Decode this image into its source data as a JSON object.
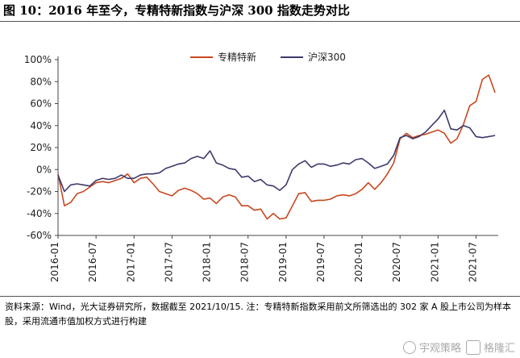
{
  "header": {
    "title": "图 10：2016 年至今，专精特新指数与沪深 300 指数走势对比"
  },
  "footer": {
    "source_text": "资料来源：Wind，光大证券研究所，数据截至 2021/10/15. 注：专精特新指数采用前文所筛选出的 302 家 A 股上市公司为样本股，采用流通市值加权方式进行构建",
    "watermark": "宇观策略",
    "watermark2": "格隆汇"
  },
  "chart_data": {
    "type": "line",
    "title": "",
    "xlabel": "",
    "ylabel": "",
    "ylim": [
      -0.6,
      1.0
    ],
    "yticks": [
      1.0,
      0.8,
      0.6,
      0.4,
      0.2,
      0.0,
      -0.2,
      -0.4,
      -0.6
    ],
    "ytick_labels": [
      "100%",
      "80%",
      "60%",
      "40%",
      "20%",
      "0%",
      "-20%",
      "-40%",
      "-60%"
    ],
    "xlim": [
      "2016-01",
      "2021-10"
    ],
    "xtick_labels": [
      "2016-01",
      "2016-07",
      "2017-01",
      "2017-07",
      "2018-01",
      "2018-07",
      "2019-01",
      "2019-07",
      "2020-01",
      "2020-07",
      "2021-01",
      "2021-07"
    ],
    "legend_position": "top-center",
    "grid": false,
    "series": [
      {
        "name": "专精特新",
        "color": "#C8471F",
        "points": [
          [
            "2016-01",
            -0.04
          ],
          [
            "2016-02",
            -0.33
          ],
          [
            "2016-03",
            -0.3
          ],
          [
            "2016-04",
            -0.22
          ],
          [
            "2016-05",
            -0.2
          ],
          [
            "2016-06",
            -0.16
          ],
          [
            "2016-07",
            -0.12
          ],
          [
            "2016-08",
            -0.11
          ],
          [
            "2016-09",
            -0.12
          ],
          [
            "2016-10",
            -0.1
          ],
          [
            "2016-11",
            -0.08
          ],
          [
            "2016-12",
            -0.04
          ],
          [
            "2017-01",
            -0.12
          ],
          [
            "2017-02",
            -0.08
          ],
          [
            "2017-03",
            -0.07
          ],
          [
            "2017-04",
            -0.13
          ],
          [
            "2017-05",
            -0.2
          ],
          [
            "2017-06",
            -0.22
          ],
          [
            "2017-07",
            -0.24
          ],
          [
            "2017-08",
            -0.19
          ],
          [
            "2017-09",
            -0.17
          ],
          [
            "2017-10",
            -0.19
          ],
          [
            "2017-11",
            -0.22
          ],
          [
            "2017-12",
            -0.27
          ],
          [
            "2018-01",
            -0.26
          ],
          [
            "2018-02",
            -0.31
          ],
          [
            "2018-03",
            -0.25
          ],
          [
            "2018-04",
            -0.23
          ],
          [
            "2018-05",
            -0.25
          ],
          [
            "2018-06",
            -0.33
          ],
          [
            "2018-07",
            -0.33
          ],
          [
            "2018-08",
            -0.37
          ],
          [
            "2018-09",
            -0.36
          ],
          [
            "2018-10",
            -0.45
          ],
          [
            "2018-11",
            -0.4
          ],
          [
            "2018-12",
            -0.45
          ],
          [
            "2019-01",
            -0.44
          ],
          [
            "2019-02",
            -0.33
          ],
          [
            "2019-03",
            -0.22
          ],
          [
            "2019-04",
            -0.21
          ],
          [
            "2019-05",
            -0.29
          ],
          [
            "2019-06",
            -0.28
          ],
          [
            "2019-07",
            -0.28
          ],
          [
            "2019-08",
            -0.27
          ],
          [
            "2019-09",
            -0.24
          ],
          [
            "2019-10",
            -0.23
          ],
          [
            "2019-11",
            -0.24
          ],
          [
            "2019-12",
            -0.22
          ],
          [
            "2020-01",
            -0.18
          ],
          [
            "2020-02",
            -0.12
          ],
          [
            "2020-03",
            -0.18
          ],
          [
            "2020-04",
            -0.12
          ],
          [
            "2020-05",
            -0.04
          ],
          [
            "2020-06",
            0.06
          ],
          [
            "2020-07",
            0.28
          ],
          [
            "2020-08",
            0.33
          ],
          [
            "2020-09",
            0.29
          ],
          [
            "2020-10",
            0.31
          ],
          [
            "2020-11",
            0.32
          ],
          [
            "2020-12",
            0.34
          ],
          [
            "2021-01",
            0.36
          ],
          [
            "2021-02",
            0.33
          ],
          [
            "2021-03",
            0.24
          ],
          [
            "2021-04",
            0.28
          ],
          [
            "2021-05",
            0.41
          ],
          [
            "2021-06",
            0.58
          ],
          [
            "2021-07",
            0.62
          ],
          [
            "2021-08",
            0.82
          ],
          [
            "2021-09",
            0.86
          ],
          [
            "2021-10",
            0.7
          ]
        ]
      },
      {
        "name": "沪深300",
        "color": "#3D3A6B",
        "points": [
          [
            "2016-01",
            -0.05
          ],
          [
            "2016-02",
            -0.2
          ],
          [
            "2016-03",
            -0.14
          ],
          [
            "2016-04",
            -0.13
          ],
          [
            "2016-05",
            -0.14
          ],
          [
            "2016-06",
            -0.15
          ],
          [
            "2016-07",
            -0.1
          ],
          [
            "2016-08",
            -0.08
          ],
          [
            "2016-09",
            -0.09
          ],
          [
            "2016-10",
            -0.08
          ],
          [
            "2016-11",
            -0.05
          ],
          [
            "2016-12",
            -0.08
          ],
          [
            "2017-01",
            -0.08
          ],
          [
            "2017-02",
            -0.05
          ],
          [
            "2017-03",
            -0.04
          ],
          [
            "2017-04",
            -0.04
          ],
          [
            "2017-05",
            -0.03
          ],
          [
            "2017-06",
            0.01
          ],
          [
            "2017-07",
            0.03
          ],
          [
            "2017-08",
            0.05
          ],
          [
            "2017-09",
            0.06
          ],
          [
            "2017-10",
            0.1
          ],
          [
            "2017-11",
            0.12
          ],
          [
            "2017-12",
            0.1
          ],
          [
            "2018-01",
            0.17
          ],
          [
            "2018-02",
            0.06
          ],
          [
            "2018-03",
            0.04
          ],
          [
            "2018-04",
            0.01
          ],
          [
            "2018-05",
            0.0
          ],
          [
            "2018-06",
            -0.07
          ],
          [
            "2018-07",
            -0.06
          ],
          [
            "2018-08",
            -0.11
          ],
          [
            "2018-09",
            -0.09
          ],
          [
            "2018-10",
            -0.14
          ],
          [
            "2018-11",
            -0.15
          ],
          [
            "2018-12",
            -0.19
          ],
          [
            "2019-01",
            -0.14
          ],
          [
            "2019-02",
            0.0
          ],
          [
            "2019-03",
            0.05
          ],
          [
            "2019-04",
            0.08
          ],
          [
            "2019-05",
            0.02
          ],
          [
            "2019-06",
            0.05
          ],
          [
            "2019-07",
            0.05
          ],
          [
            "2019-08",
            0.03
          ],
          [
            "2019-09",
            0.04
          ],
          [
            "2019-10",
            0.06
          ],
          [
            "2019-11",
            0.05
          ],
          [
            "2019-12",
            0.09
          ],
          [
            "2020-01",
            0.1
          ],
          [
            "2020-02",
            0.06
          ],
          [
            "2020-03",
            0.01
          ],
          [
            "2020-04",
            0.03
          ],
          [
            "2020-05",
            0.05
          ],
          [
            "2020-06",
            0.13
          ],
          [
            "2020-07",
            0.29
          ],
          [
            "2020-08",
            0.31
          ],
          [
            "2020-09",
            0.28
          ],
          [
            "2020-10",
            0.3
          ],
          [
            "2020-11",
            0.34
          ],
          [
            "2020-12",
            0.4
          ],
          [
            "2021-01",
            0.46
          ],
          [
            "2021-02",
            0.54
          ],
          [
            "2021-03",
            0.37
          ],
          [
            "2021-04",
            0.36
          ],
          [
            "2021-05",
            0.4
          ],
          [
            "2021-06",
            0.38
          ],
          [
            "2021-07",
            0.3
          ],
          [
            "2021-08",
            0.29
          ],
          [
            "2021-09",
            0.3
          ],
          [
            "2021-10",
            0.31
          ]
        ]
      }
    ]
  }
}
